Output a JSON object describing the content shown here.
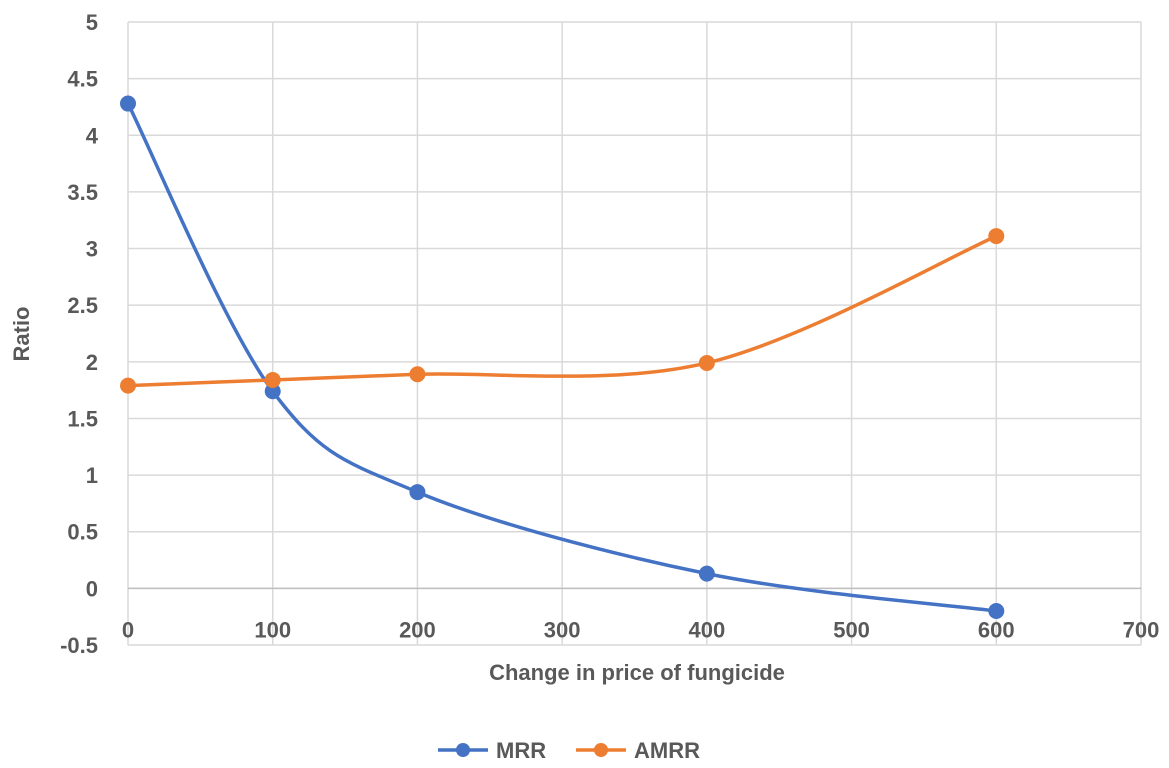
{
  "chart_data": {
    "type": "line",
    "smooth": true,
    "title": "",
    "xlabel": "Change in price of fungicide",
    "ylabel": "Ratio",
    "xlim": [
      0,
      700
    ],
    "ylim": [
      -0.5,
      5
    ],
    "xticks": [
      0,
      100,
      200,
      300,
      400,
      500,
      600,
      700
    ],
    "yticks": [
      -0.5,
      0,
      0.5,
      1,
      1.5,
      2,
      2.5,
      3,
      3.5,
      4,
      4.5,
      5
    ],
    "xtick_labels": [
      "0",
      "100",
      "200",
      "300",
      "400",
      "500",
      "600",
      "700"
    ],
    "ytick_labels": [
      "-0.5",
      "0",
      "0.5",
      "1",
      "1.5",
      "2",
      "2.5",
      "3",
      "3.5",
      "4",
      "4.5",
      "5"
    ],
    "grid": true,
    "legend_position": "bottom",
    "series": [
      {
        "name": "MRR",
        "color": "#4472C4",
        "x": [
          0,
          100,
          200,
          400,
          600
        ],
        "y": [
          4.28,
          1.74,
          0.85,
          0.13,
          -0.2
        ]
      },
      {
        "name": "AMRR",
        "color": "#ED7D31",
        "x": [
          0,
          100,
          200,
          400,
          600
        ],
        "y": [
          1.79,
          1.84,
          1.89,
          1.99,
          3.11
        ]
      }
    ]
  }
}
